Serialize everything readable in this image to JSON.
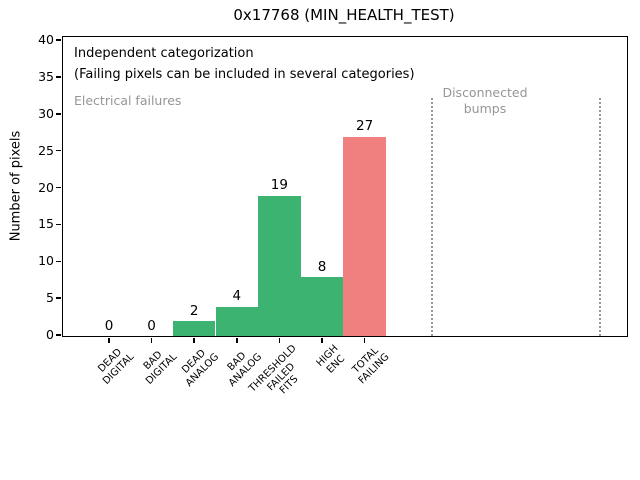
{
  "title": "0x17768 (MIN_HEALTH_TEST)",
  "y_axis_label": "Number of pixels",
  "annotations": {
    "independent": "Independent categorization",
    "caveat": "(Failing pixels can be included in several categories)",
    "electrical_failures": "Electrical failures",
    "disconnected_bumps": "Disconnected\nbumps"
  },
  "chart_data": {
    "type": "bar",
    "title": "0x17768 (MIN_HEALTH_TEST)",
    "xlabel": "",
    "ylabel": "Number of pixels",
    "ylim": [
      0,
      40.4
    ],
    "yticks": [
      0,
      5,
      10,
      15,
      20,
      25,
      30,
      35,
      40
    ],
    "grid": false,
    "legend": "none",
    "categories": [
      "DEAD DIGITAL",
      "BAD DIGITAL",
      "DEAD ANALOG",
      "BAD ANALOG",
      "THRESHOLD FAILED FITS",
      "HIGH ENC",
      "TOTAL FAILING"
    ],
    "category_label_lines": [
      [
        "DEAD",
        "DIGITAL"
      ],
      [
        "BAD",
        "DIGITAL"
      ],
      [
        "DEAD",
        "ANALOG"
      ],
      [
        "BAD",
        "ANALOG"
      ],
      [
        "THRESHOLD",
        "FAILED",
        "FITS"
      ],
      [
        "HIGH",
        "ENC"
      ],
      [
        "TOTAL",
        "FAILING"
      ]
    ],
    "values": [
      0,
      0,
      2,
      4,
      19,
      8,
      27
    ],
    "bar_value_labels": [
      "0",
      "0",
      "2",
      "4",
      "19",
      "8",
      "27"
    ],
    "bar_colors": [
      "#3cb371",
      "#3cb371",
      "#3cb371",
      "#3cb371",
      "#3cb371",
      "#3cb371",
      "#f08080"
    ],
    "colors": {
      "electrical_bar_green": "#3cb371",
      "total_failing_red": "#f08080",
      "gray_annotation": "#969696",
      "dotted_divider_gray": "#969696",
      "axis_black": "#000000"
    },
    "region_labels": [
      {
        "text": "Electrical failures",
        "color": "#969696"
      },
      {
        "text": "Disconnected\nbumps",
        "color": "#969696"
      }
    ]
  }
}
